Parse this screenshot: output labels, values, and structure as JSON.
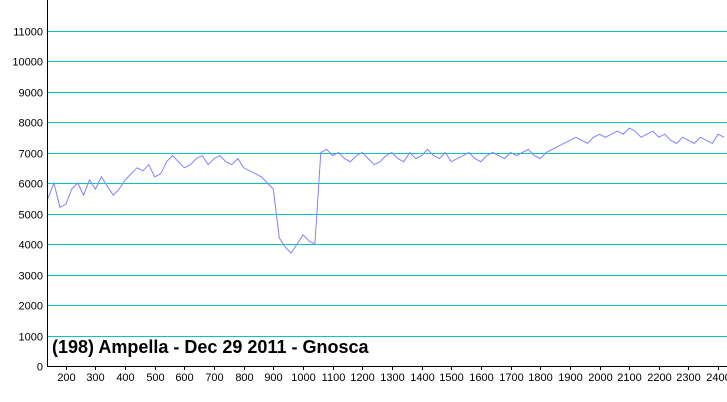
{
  "chart_data": {
    "type": "line",
    "title": "(198) Ampella - Dec 29 2011 - Gnosca",
    "xlabel": "",
    "ylabel": "",
    "xlim": [
      140,
      2430
    ],
    "ylim": [
      0,
      12000
    ],
    "x_ticks": [
      "200",
      "300",
      "400",
      "500",
      "600",
      "700",
      "800",
      "900",
      "1000",
      "1100",
      "1200",
      "1300",
      "1400",
      "1500",
      "1600",
      "1700",
      "1800",
      "1900",
      "2000",
      "2100",
      "2200",
      "2300",
      "2400"
    ],
    "y_ticks": [
      "0",
      "1000",
      "2000",
      "3000",
      "4000",
      "5000",
      "6000",
      "7000",
      "8000",
      "9000",
      "10000",
      "11000"
    ],
    "grid": "horizontal",
    "colors": {
      "line": "#8080ff",
      "grid": "#00c8c8",
      "axis": "#000000"
    },
    "series": [
      {
        "x": [
          140,
          160,
          180,
          200,
          220,
          240,
          260,
          280,
          300,
          320,
          340,
          360,
          380,
          400,
          420,
          440,
          460,
          480,
          500,
          520,
          540,
          560,
          580,
          600,
          620,
          640,
          660,
          680,
          700,
          720,
          740,
          760,
          780,
          800,
          820,
          840,
          860,
          880,
          900,
          920,
          940,
          960,
          980,
          1000,
          1020,
          1040,
          1060,
          1080,
          1100,
          1120,
          1140,
          1160,
          1180,
          1200,
          1220,
          1240,
          1260,
          1280,
          1300,
          1320,
          1340,
          1360,
          1380,
          1400,
          1420,
          1440,
          1460,
          1480,
          1500,
          1520,
          1540,
          1560,
          1580,
          1600,
          1620,
          1640,
          1660,
          1680,
          1700,
          1720,
          1740,
          1760,
          1780,
          1800,
          1820,
          1840,
          1860,
          1880,
          1900,
          1920,
          1940,
          1960,
          1980,
          2000,
          2020,
          2040,
          2060,
          2080,
          2100,
          2120,
          2140,
          2160,
          2180,
          2200,
          2220,
          2240,
          2260,
          2280,
          2300,
          2320,
          2340,
          2360,
          2380,
          2400,
          2420
        ],
        "values": [
          5500,
          6000,
          5200,
          5300,
          5800,
          6000,
          5600,
          6100,
          5800,
          6200,
          5900,
          5600,
          5800,
          6100,
          6300,
          6500,
          6400,
          6600,
          6200,
          6300,
          6700,
          6900,
          6700,
          6500,
          6600,
          6800,
          6900,
          6600,
          6800,
          6900,
          6700,
          6600,
          6800,
          6500,
          6400,
          6300,
          6200,
          6000,
          5800,
          4200,
          3900,
          3700,
          4000,
          4300,
          4100,
          4000,
          7000,
          7100,
          6900,
          7000,
          6800,
          6700,
          6900,
          7000,
          6800,
          6600,
          6700,
          6900,
          7000,
          6800,
          6700,
          7000,
          6800,
          6900,
          7100,
          6900,
          6800,
          7000,
          6700,
          6800,
          6900,
          7000,
          6800,
          6700,
          6900,
          7000,
          6900,
          6800,
          7000,
          6900,
          7000,
          7100,
          6900,
          6800,
          7000,
          7100,
          7200,
          7300,
          7400,
          7500,
          7400,
          7300,
          7500,
          7600,
          7500,
          7600,
          7700,
          7600,
          7800,
          7700,
          7500,
          7600,
          7700,
          7500,
          7600,
          7400,
          7300,
          7500,
          7400,
          7300,
          7500,
          7400,
          7300,
          7600,
          7500
        ]
      }
    ]
  }
}
